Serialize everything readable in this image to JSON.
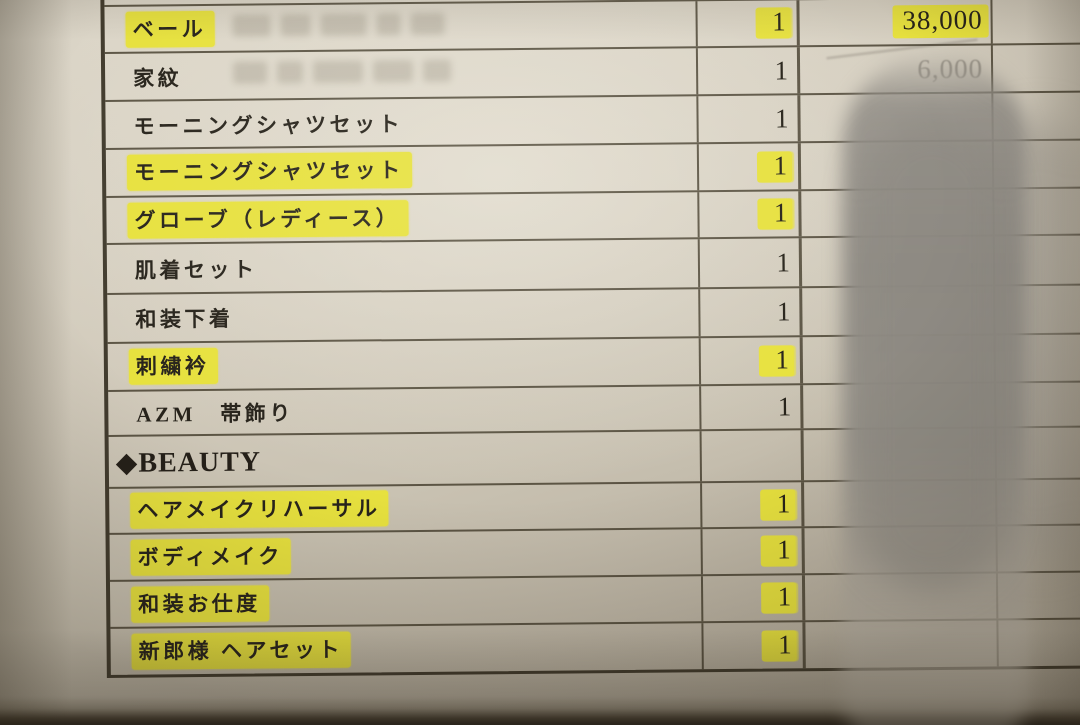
{
  "photo": {
    "description": "Photograph of a printed Japanese bridal cost-estimate table with yellow highlighter marks; a blurred fingertip covers most of the price column; the price column is partially legible only in the top rows.",
    "colors": {
      "paper_light": "#dcd6c8",
      "paper_mid": "#d2cbbc",
      "paper_dark": "#b0a898",
      "table_line": "#4e4736",
      "ink": "#27231b",
      "faint_ink": "#8f897c",
      "highlight_yellow": "#e7e13e",
      "finger_grey": "#928e87",
      "paper_bottom_edge": "#2a251e"
    },
    "table": {
      "rows": [
        {
          "item": "ベール",
          "qty": "1",
          "price": "38,000",
          "item_hl": true,
          "qty_hl": true,
          "price_hl": true,
          "ghost_marks": true
        },
        {
          "item": "家紋",
          "qty": "1",
          "price": "6,000",
          "price_faint": true,
          "ghost_marks": true
        },
        {
          "item": "モーニングシャツセット",
          "qty": "1"
        },
        {
          "item": "モーニングシャツセット",
          "qty": "1",
          "item_hl": true,
          "qty_hl": true
        },
        {
          "item": "グローブ（レディース）",
          "qty": "1",
          "item_hl": true,
          "qty_hl": true
        },
        {
          "item": "肌着セット",
          "qty": "1"
        },
        {
          "item": "和装下着",
          "qty": "1"
        },
        {
          "item": "刺繍衿",
          "qty": "1",
          "item_hl": true,
          "qty_hl": true
        },
        {
          "item": "AZM　帯飾り",
          "qty": "1"
        },
        {
          "item": "◆BEAUTY",
          "qty": "",
          "section": true
        },
        {
          "item": "ヘアメイクリハーサル",
          "qty": "1",
          "item_hl": true,
          "qty_hl": true
        },
        {
          "item": "ボディメイク",
          "qty": "1",
          "item_hl": true,
          "qty_hl": true
        },
        {
          "item": "和装お仕度",
          "qty": "1",
          "item_hl": true,
          "qty_hl": true
        },
        {
          "item": "新郎様 ヘアセット",
          "qty": "1",
          "item_hl": true,
          "qty_hl": true
        }
      ]
    }
  }
}
